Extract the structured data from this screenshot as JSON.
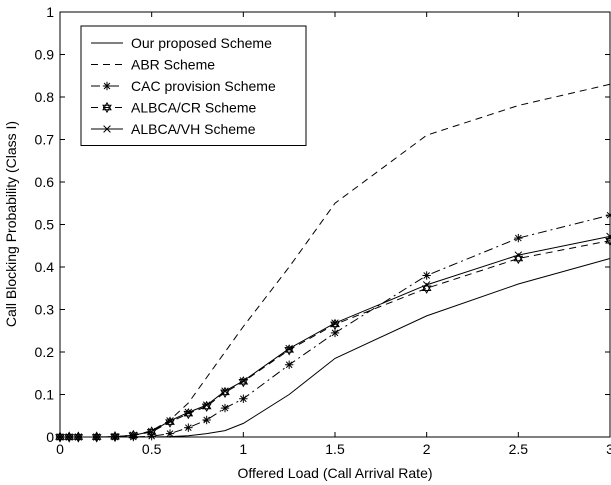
{
  "chart_data": {
    "type": "line",
    "xlabel": "Offered Load (Call Arrival Rate)",
    "ylabel": "Call Blocking Probability (Class I)",
    "xlim": [
      0,
      3
    ],
    "ylim": [
      0,
      1
    ],
    "xticks": [
      "0",
      "0.5",
      "1",
      "1.5",
      "2",
      "2.5",
      "3"
    ],
    "yticks": [
      "0",
      "0.1",
      "0.2",
      "0.3",
      "0.4",
      "0.5",
      "0.6",
      "0.7",
      "0.8",
      "0.9",
      "1"
    ],
    "grid": false,
    "legend_position": "top-left",
    "series": [
      {
        "name": "Our proposed Scheme",
        "line": "solid",
        "marker": "none",
        "x": [
          0,
          0.05,
          0.1,
          0.2,
          0.3,
          0.4,
          0.5,
          0.6,
          0.7,
          0.8,
          0.9,
          1,
          1.25,
          1.5,
          2,
          2.5,
          3
        ],
        "y": [
          0,
          0,
          0,
          0,
          0,
          0,
          0,
          0.001,
          0.003,
          0.008,
          0.015,
          0.032,
          0.1,
          0.185,
          0.285,
          0.36,
          0.42
        ]
      },
      {
        "name": "ABR Scheme",
        "line": "dashed",
        "marker": "none",
        "x": [
          0,
          0.05,
          0.1,
          0.2,
          0.3,
          0.4,
          0.5,
          0.6,
          0.7,
          0.8,
          0.9,
          1,
          1.25,
          1.5,
          2,
          2.5,
          3
        ],
        "y": [
          0,
          0,
          0,
          0,
          0,
          0.003,
          0.015,
          0.04,
          0.08,
          0.14,
          0.2,
          0.26,
          0.4,
          0.55,
          0.71,
          0.78,
          0.83
        ]
      },
      {
        "name": "CAC provision Scheme",
        "line": "dashdot",
        "marker": "star",
        "x": [
          0,
          0.05,
          0.1,
          0.2,
          0.3,
          0.4,
          0.5,
          0.6,
          0.7,
          0.8,
          0.9,
          1,
          1.25,
          1.5,
          2,
          2.5,
          3
        ],
        "y": [
          0,
          0,
          0,
          0,
          0,
          0,
          0.002,
          0.008,
          0.022,
          0.04,
          0.068,
          0.09,
          0.17,
          0.245,
          0.38,
          0.468,
          0.522
        ]
      },
      {
        "name": "ALBCA/CR Scheme",
        "line": "dashed",
        "marker": "hexagram",
        "x": [
          0,
          0.05,
          0.1,
          0.2,
          0.3,
          0.4,
          0.5,
          0.6,
          0.7,
          0.8,
          0.9,
          1,
          1.25,
          1.5,
          2,
          2.5,
          3
        ],
        "y": [
          0,
          0,
          0,
          0,
          0.001,
          0.004,
          0.012,
          0.035,
          0.055,
          0.072,
          0.105,
          0.13,
          0.205,
          0.265,
          0.35,
          0.42,
          0.462
        ]
      },
      {
        "name": "ALBCA/VH Scheme",
        "line": "solid",
        "marker": "x",
        "x": [
          0,
          0.05,
          0.1,
          0.2,
          0.3,
          0.4,
          0.5,
          0.6,
          0.7,
          0.8,
          0.9,
          1,
          1.25,
          1.5,
          2,
          2.5,
          3
        ],
        "y": [
          0,
          0,
          0,
          0,
          0.001,
          0.004,
          0.013,
          0.038,
          0.058,
          0.075,
          0.108,
          0.132,
          0.208,
          0.268,
          0.358,
          0.428,
          0.472
        ]
      }
    ]
  }
}
